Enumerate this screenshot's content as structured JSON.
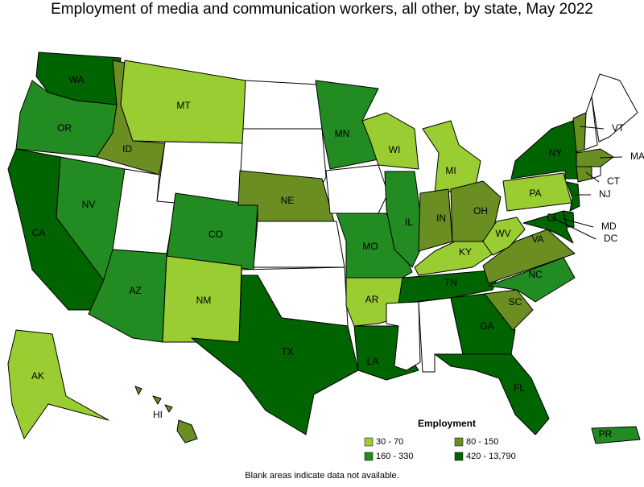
{
  "title": "Employment of media and communication workers, all other, by state, May 2022",
  "legend": {
    "title": "Employment",
    "items": [
      {
        "label": "30 - 70",
        "color": "#9acd32"
      },
      {
        "label": "80 - 150",
        "color": "#6b8e23"
      },
      {
        "label": "160 - 330",
        "color": "#228b22"
      },
      {
        "label": "420 - 13,790",
        "color": "#006400"
      }
    ]
  },
  "note": "Blank areas indicate data not available.",
  "states": [
    {
      "abbr": "WA",
      "class": 3
    },
    {
      "abbr": "OR",
      "class": 2
    },
    {
      "abbr": "CA",
      "class": 3
    },
    {
      "abbr": "NV",
      "class": 2
    },
    {
      "abbr": "ID",
      "class": 1
    },
    {
      "abbr": "MT",
      "class": 0
    },
    {
      "abbr": null,
      "class": null
    },
    {
      "abbr": null,
      "class": null
    },
    {
      "abbr": "CO",
      "class": 2
    },
    {
      "abbr": "AZ",
      "class": 2
    },
    {
      "abbr": "NM",
      "class": 0
    },
    {
      "abbr": null,
      "class": null
    },
    {
      "abbr": null,
      "class": null
    },
    {
      "abbr": "NE",
      "class": 1
    },
    {
      "abbr": null,
      "class": null
    },
    {
      "abbr": null,
      "class": null
    },
    {
      "abbr": "TX",
      "class": 3
    },
    {
      "abbr": "MN",
      "class": 2
    },
    {
      "abbr": null,
      "class": null
    },
    {
      "abbr": "MO",
      "class": 2
    },
    {
      "abbr": "AR",
      "class": 0
    },
    {
      "abbr": "LA",
      "class": 3
    },
    {
      "abbr": "WI",
      "class": 0
    },
    {
      "abbr": "IL",
      "class": 2
    },
    {
      "abbr": "MI",
      "class": 0
    },
    {
      "abbr": "IN",
      "class": 1
    },
    {
      "abbr": "OH",
      "class": 1
    },
    {
      "abbr": "KY",
      "class": 0
    },
    {
      "abbr": "TN",
      "class": 3
    },
    {
      "abbr": null,
      "class": null
    },
    {
      "abbr": null,
      "class": null
    },
    {
      "abbr": "GA",
      "class": 3
    },
    {
      "abbr": "FL",
      "class": 3
    },
    {
      "abbr": "SC",
      "class": 1
    },
    {
      "abbr": "NC",
      "class": 2
    },
    {
      "abbr": "VA",
      "class": 1
    },
    {
      "abbr": "WV",
      "class": 0
    },
    {
      "abbr": "PA",
      "class": 0
    },
    {
      "abbr": "NY",
      "class": 3
    },
    {
      "abbr": "VT",
      "class": 1
    },
    {
      "abbr": null,
      "class": null
    },
    {
      "abbr": null,
      "class": null
    },
    {
      "abbr": "MA",
      "class": 1
    },
    {
      "abbr": "CT",
      "class": 1
    },
    {
      "abbr": null,
      "class": null
    },
    {
      "abbr": "NJ",
      "class": 3
    },
    {
      "abbr": null,
      "class": 3
    },
    {
      "abbr": "MD",
      "class": 3
    },
    {
      "abbr": "DC",
      "class": 3
    },
    {
      "abbr": "AK",
      "class": 0
    },
    {
      "abbr": "HI",
      "class": 1
    },
    {
      "abbr": "PR",
      "class": 2
    }
  ]
}
